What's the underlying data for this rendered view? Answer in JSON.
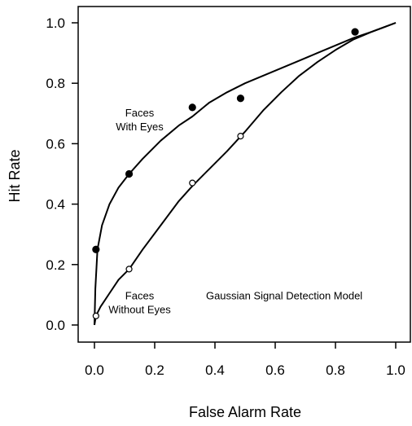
{
  "chart_data": {
    "type": "line",
    "title": "",
    "xlabel": "False Alarm Rate",
    "ylabel": "Hit Rate",
    "xlim": [
      0.0,
      1.0
    ],
    "ylim": [
      0.0,
      1.0
    ],
    "xticks": [
      "0.0",
      "0.2",
      "0.4",
      "0.6",
      "0.8",
      "1.0"
    ],
    "yticks": [
      "0.0",
      "0.2",
      "0.4",
      "0.6",
      "0.8",
      "1.0"
    ],
    "grid": false,
    "series": [
      {
        "marker": "filled-circle",
        "color": "#000000",
        "points": [
          {
            "x": 0.005,
            "y": 0.25
          },
          {
            "x": 0.115,
            "y": 0.5
          },
          {
            "x": 0.325,
            "y": 0.72
          },
          {
            "x": 0.485,
            "y": 0.75
          },
          {
            "x": 0.865,
            "y": 0.97
          }
        ],
        "curve": [
          [
            0.0,
            0.0
          ],
          [
            0.003,
            0.12
          ],
          [
            0.01,
            0.25
          ],
          [
            0.025,
            0.33
          ],
          [
            0.05,
            0.4
          ],
          [
            0.08,
            0.455
          ],
          [
            0.115,
            0.5
          ],
          [
            0.16,
            0.55
          ],
          [
            0.22,
            0.61
          ],
          [
            0.28,
            0.66
          ],
          [
            0.325,
            0.69
          ],
          [
            0.38,
            0.735
          ],
          [
            0.44,
            0.77
          ],
          [
            0.5,
            0.8
          ],
          [
            0.56,
            0.825
          ],
          [
            0.62,
            0.85
          ],
          [
            0.68,
            0.875
          ],
          [
            0.74,
            0.9
          ],
          [
            0.8,
            0.925
          ],
          [
            0.86,
            0.95
          ],
          [
            0.92,
            0.97
          ],
          [
            0.96,
            0.985
          ],
          [
            1.0,
            1.0
          ]
        ]
      },
      {
        "marker": "open-circle",
        "color": "#000000",
        "points": [
          {
            "x": 0.005,
            "y": 0.03
          },
          {
            "x": 0.115,
            "y": 0.185
          },
          {
            "x": 0.325,
            "y": 0.47
          },
          {
            "x": 0.485,
            "y": 0.625
          }
        ],
        "curve": [
          [
            0.0,
            0.0
          ],
          [
            0.005,
            0.03
          ],
          [
            0.02,
            0.06
          ],
          [
            0.05,
            0.105
          ],
          [
            0.08,
            0.15
          ],
          [
            0.115,
            0.185
          ],
          [
            0.16,
            0.25
          ],
          [
            0.22,
            0.33
          ],
          [
            0.28,
            0.41
          ],
          [
            0.325,
            0.46
          ],
          [
            0.38,
            0.515
          ],
          [
            0.44,
            0.575
          ],
          [
            0.5,
            0.64
          ],
          [
            0.56,
            0.71
          ],
          [
            0.62,
            0.77
          ],
          [
            0.68,
            0.825
          ],
          [
            0.74,
            0.87
          ],
          [
            0.8,
            0.91
          ],
          [
            0.86,
            0.945
          ],
          [
            0.92,
            0.97
          ],
          [
            0.96,
            0.985
          ],
          [
            1.0,
            1.0
          ]
        ]
      }
    ],
    "annotations": [
      {
        "lines": [
          "Faces",
          "With Eyes"
        ],
        "x": 0.15,
        "y": 0.69
      },
      {
        "lines": [
          "Faces",
          "Without Eyes"
        ],
        "x": 0.15,
        "y": 0.085
      },
      {
        "lines": [
          "Gaussian Signal Detection Model"
        ],
        "x": 0.63,
        "y": 0.085
      }
    ]
  }
}
